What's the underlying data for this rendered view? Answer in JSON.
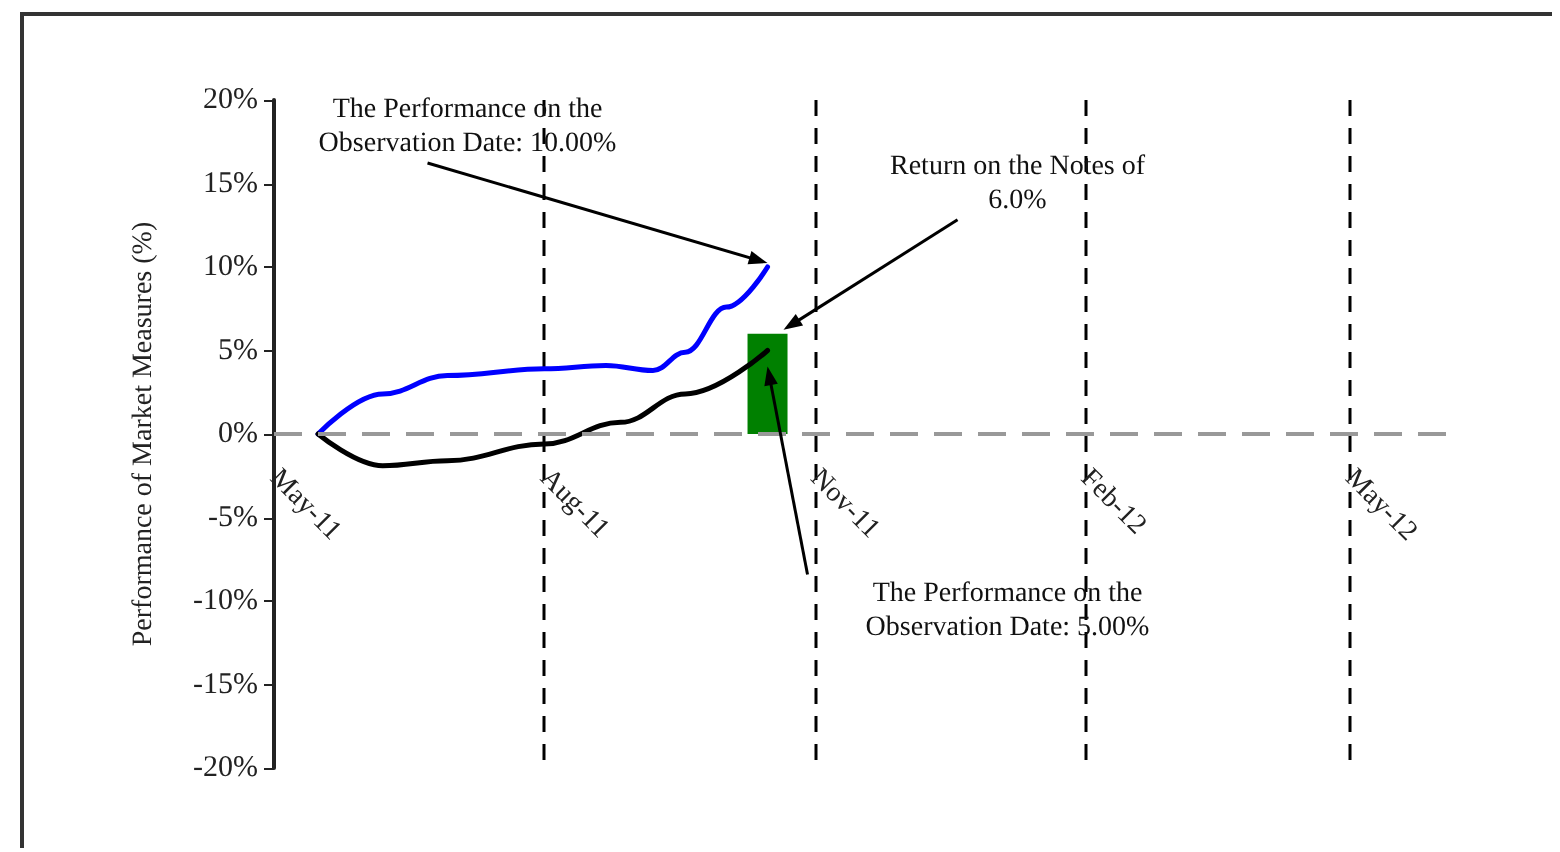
{
  "chart_data": {
    "type": "line",
    "ylabel": "Performance of Market Measures (%)",
    "xlim": [
      "2011-05-01",
      "2012-06-05"
    ],
    "xticks": [
      {
        "value": "2011-05-01",
        "label": "May-11"
      },
      {
        "value": "2011-08-01",
        "label": "Aug-11"
      },
      {
        "value": "2011-11-01",
        "label": "Nov-11"
      },
      {
        "value": "2012-02-01",
        "label": "Feb-12"
      },
      {
        "value": "2012-05-01",
        "label": "May-12"
      }
    ],
    "ylim": [
      -20,
      20
    ],
    "yticks": [
      {
        "value": -20,
        "label": "-20%"
      },
      {
        "value": -15,
        "label": "-15%"
      },
      {
        "value": -10,
        "label": "-10%"
      },
      {
        "value": -5,
        "label": "-5%"
      },
      {
        "value": 0,
        "label": "0%"
      },
      {
        "value": 5,
        "label": "5%"
      },
      {
        "value": 10,
        "label": "10%"
      },
      {
        "value": 15,
        "label": "15%"
      },
      {
        "value": 20,
        "label": "20%"
      }
    ],
    "grid": "x",
    "marker": "none",
    "line_style": "solid",
    "series": [
      {
        "color": "#0000ff",
        "x": [
          "2011-05-16",
          "2011-06-07",
          "2011-06-29",
          "2011-08-01",
          "2011-08-22",
          "2011-09-07",
          "2011-09-18",
          "2011-10-02",
          "2011-10-16"
        ],
        "values": [
          0,
          2.4,
          3.5,
          3.9,
          4.1,
          3.8,
          4.9,
          7.6,
          10
        ]
      },
      {
        "color": "#000000",
        "x": [
          "2011-05-16",
          "2011-06-07",
          "2011-06-29",
          "2011-08-01",
          "2011-08-27",
          "2011-09-18",
          "2011-10-16"
        ],
        "values": [
          0,
          -1.9,
          -1.6,
          -0.6,
          0.7,
          2.4,
          5.0
        ]
      },
      {
        "type": "bar",
        "color": "#008000",
        "x": [
          "2011-10-16"
        ],
        "values": [
          6.0
        ]
      }
    ],
    "ref_lines": [
      {
        "axis": "y",
        "value": 0,
        "color": "#999999",
        "line_style": "dashed"
      }
    ],
    "annotations": [
      {
        "text": "The Performance on the Observation Date: 10.00%",
        "x": "2011-10-16",
        "y": 10
      },
      "Return on the Notes of 6.0%",
      "The Performance on the Observation Date: 5.00%"
    ]
  }
}
